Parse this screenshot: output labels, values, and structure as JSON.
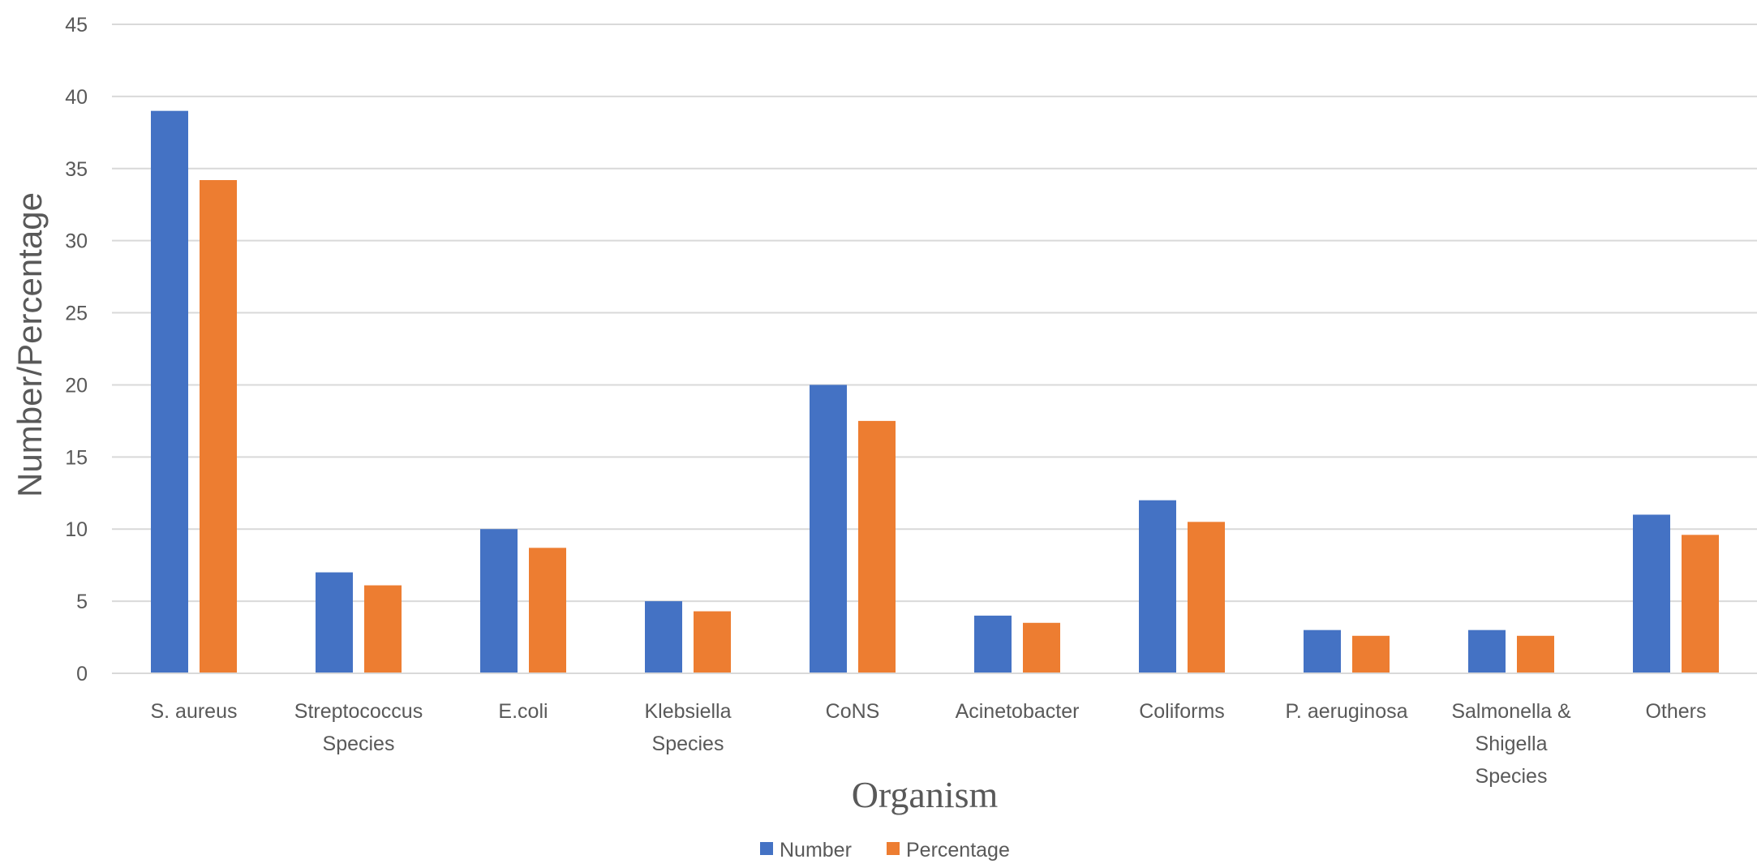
{
  "chart_data": {
    "type": "bar",
    "title": "",
    "xlabel": "Organism",
    "ylabel": "Number/Percentage",
    "ylim": [
      0,
      45
    ],
    "yticks": [
      0,
      5,
      10,
      15,
      20,
      25,
      30,
      35,
      40,
      45
    ],
    "grid": true,
    "legend_position": "bottom",
    "categories": [
      [
        "S. aureus"
      ],
      [
        "Streptococcus",
        "Species"
      ],
      [
        "E.coli"
      ],
      [
        "Klebsiella",
        "Species"
      ],
      [
        "CoNS"
      ],
      [
        "Acinetobacter"
      ],
      [
        "Coliforms"
      ],
      [
        "P. aeruginosa"
      ],
      [
        "Salmonella &",
        "Shigella",
        "Species"
      ],
      [
        "Others"
      ]
    ],
    "series": [
      {
        "name": "Number",
        "color": "#4472C4",
        "values": [
          39,
          7,
          10,
          5,
          20,
          4,
          12,
          3,
          3,
          11
        ]
      },
      {
        "name": "Percentage",
        "color": "#ED7D31",
        "values": [
          34.2,
          6.1,
          8.7,
          4.3,
          17.5,
          3.5,
          10.5,
          2.6,
          2.6,
          9.6
        ]
      }
    ]
  }
}
